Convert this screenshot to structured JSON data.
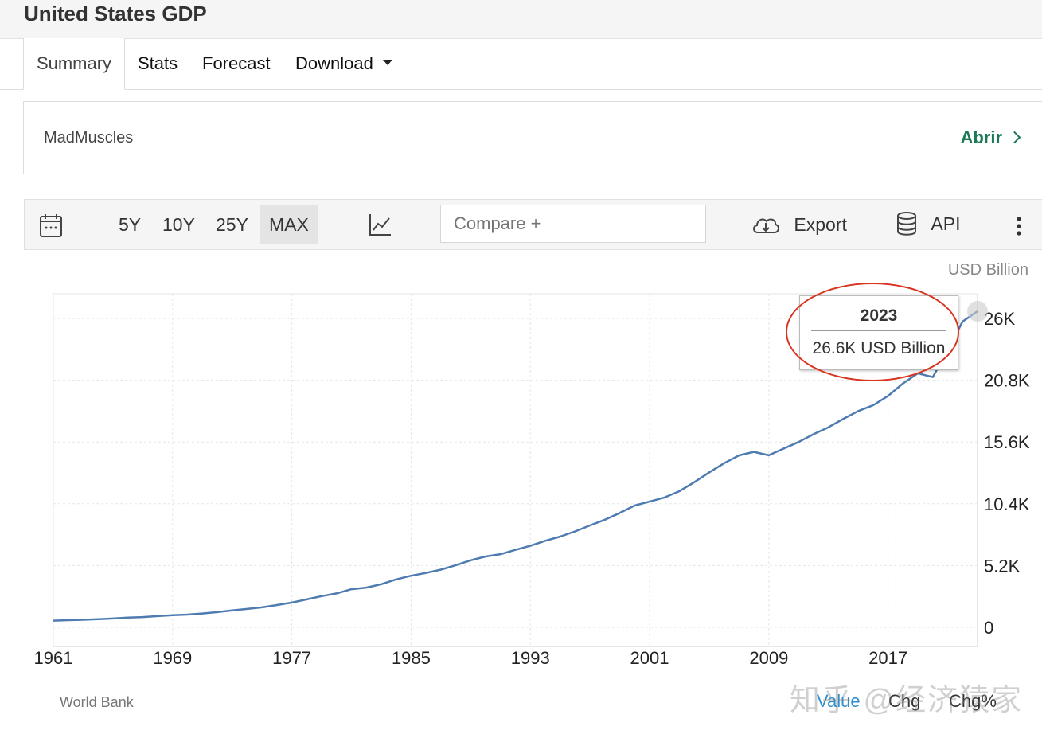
{
  "header": {
    "title": "United States GDP"
  },
  "tabs": [
    {
      "label": "Summary",
      "active": true
    },
    {
      "label": "Stats"
    },
    {
      "label": "Forecast"
    },
    {
      "label": "Download"
    }
  ],
  "ad": {
    "name": "MadMuscles",
    "link_label": "Abrir"
  },
  "toolbar": {
    "ranges": [
      "5Y",
      "10Y",
      "25Y",
      "MAX"
    ],
    "active_range": "MAX",
    "compare_placeholder": "Compare +",
    "export_label": "Export",
    "api_label": "API"
  },
  "tooltip": {
    "year": "2023",
    "value": "26.6K USD Billion"
  },
  "legend": {
    "source": "World Bank",
    "items": [
      "Value",
      "Chg",
      "Chg%"
    ]
  },
  "watermark": "知乎 @经济猿家",
  "colors": {
    "line": "#4e7bb0",
    "accent_green": "#1a7a55",
    "annotation_red": "#d9321e"
  },
  "chart_data": {
    "type": "line",
    "unit": "USD Billion",
    "x_tick_labels": [
      "1961",
      "1969",
      "1977",
      "1985",
      "1993",
      "2001",
      "2009",
      "2017"
    ],
    "y_tick_labels": [
      "0",
      "5.2K",
      "10.4K",
      "15.6K",
      "20.8K",
      "26K"
    ],
    "ylim": [
      0,
      26000
    ],
    "xlim": [
      1961,
      2023
    ],
    "grid": true,
    "series": [
      {
        "x": [
          1961,
          1962,
          1963,
          1964,
          1965,
          1966,
          1967,
          1968,
          1969,
          1970,
          1971,
          1972,
          1973,
          1974,
          1975,
          1976,
          1977,
          1978,
          1979,
          1980,
          1981,
          1982,
          1983,
          1984,
          1985,
          1986,
          1987,
          1988,
          1989,
          1990,
          1991,
          1992,
          1993,
          1994,
          1995,
          1996,
          1997,
          1998,
          1999,
          2000,
          2001,
          2002,
          2003,
          2004,
          2005,
          2006,
          2007,
          2008,
          2009,
          2010,
          2011,
          2012,
          2013,
          2014,
          2015,
          2016,
          2017,
          2018,
          2019,
          2020,
          2021,
          2022,
          2023
        ],
        "y": [
          563,
          605,
          638,
          686,
          744,
          815,
          862,
          943,
          1019,
          1073,
          1164,
          1279,
          1425,
          1545,
          1684,
          1873,
          2082,
          2352,
          2627,
          2857,
          3207,
          3343,
          3634,
          4037,
          4339,
          4579,
          4855,
          5236,
          5641,
          5963,
          6158,
          6520,
          6859,
          7287,
          7640,
          8073,
          8578,
          9063,
          9631,
          10251,
          10582,
          10929,
          11457,
          12217,
          13039,
          13816,
          14474,
          14770,
          14478,
          15049,
          15600,
          16254,
          16843,
          17551,
          18206,
          18695,
          19477,
          20533,
          21381,
          21060,
          23315,
          25744,
          26600
        ]
      }
    ]
  }
}
